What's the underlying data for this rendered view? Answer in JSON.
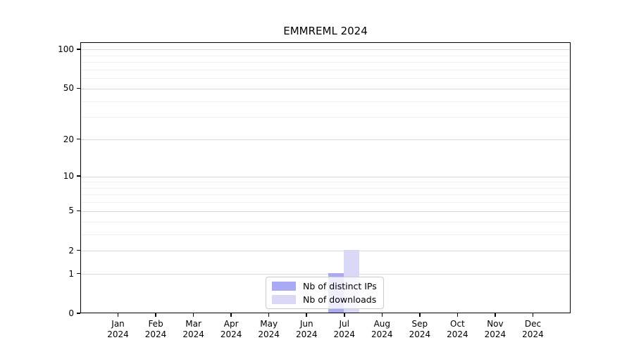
{
  "chart_data": {
    "type": "bar",
    "title": "EMMREML 2024",
    "categories": [
      "Jan",
      "Feb",
      "Mar",
      "Apr",
      "May",
      "Jun",
      "Jul",
      "Aug",
      "Sep",
      "Oct",
      "Nov",
      "Dec"
    ],
    "category_year": "2024",
    "series": [
      {
        "name": "Nb of distinct IPs",
        "color": "#a9a9f4",
        "values": [
          0,
          0,
          0,
          0,
          0,
          0,
          1,
          0,
          0,
          0,
          0,
          0
        ]
      },
      {
        "name": "Nb of downloads",
        "color": "#d9d9f7",
        "values": [
          0,
          0,
          0,
          0,
          0,
          0,
          2,
          0,
          0,
          0,
          0,
          0
        ]
      }
    ],
    "yscale": "log1p",
    "ylim": [
      0,
      113
    ],
    "y_ticks": [
      0,
      1,
      2,
      5,
      10,
      20,
      50,
      100
    ],
    "y_minor_gridlines": [
      3,
      4,
      6,
      7,
      8,
      9,
      30,
      40,
      60,
      70,
      80,
      90
    ],
    "grid": true,
    "legend_position": "lower center",
    "colors": {
      "grid_major": "#d9d9d9",
      "grid_minor": "#f0f0f0",
      "axis": "#000000",
      "background": "#ffffff"
    }
  }
}
